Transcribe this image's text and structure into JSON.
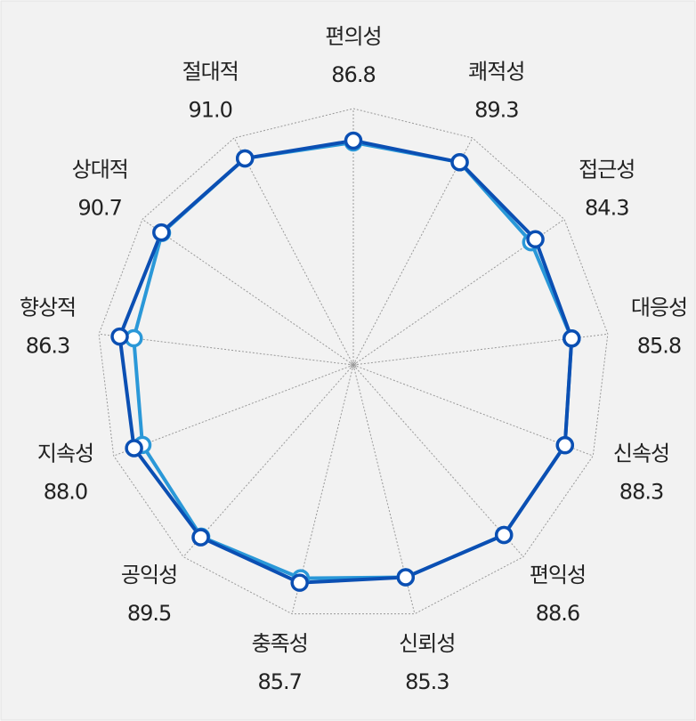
{
  "chart_data": {
    "type": "radar",
    "categories": [
      "편의성",
      "쾌적성",
      "접근성",
      "대응성",
      "신속성",
      "편익성",
      "신뢰성",
      "충족성",
      "공익성",
      "지속성",
      "향상적",
      "상대적",
      "절대적"
    ],
    "series": [
      {
        "color": "#2a98d8",
        "values": [
          86.8,
          89.3,
          84.3,
          85.8,
          88.3,
          88.6,
          85.3,
          85.7,
          89.5,
          88.0,
          86.3,
          90.7,
          91.0
        ],
        "value_labels": [
          "86.8",
          "89.3",
          "84.3",
          "85.8",
          "88.3",
          "88.6",
          "85.3",
          "85.7",
          "89.5",
          "88.0",
          "86.3",
          "90.7",
          "91.0"
        ]
      },
      {
        "color": "#0b4fb3",
        "values": [
          87.5,
          89.3,
          86.3,
          85.8,
          88.3,
          88.6,
          85.3,
          87.5,
          89.8,
          91.5,
          91.8,
          91.0,
          91.0
        ]
      }
    ],
    "rlim": [
      0,
      100
    ],
    "grid": true
  }
}
